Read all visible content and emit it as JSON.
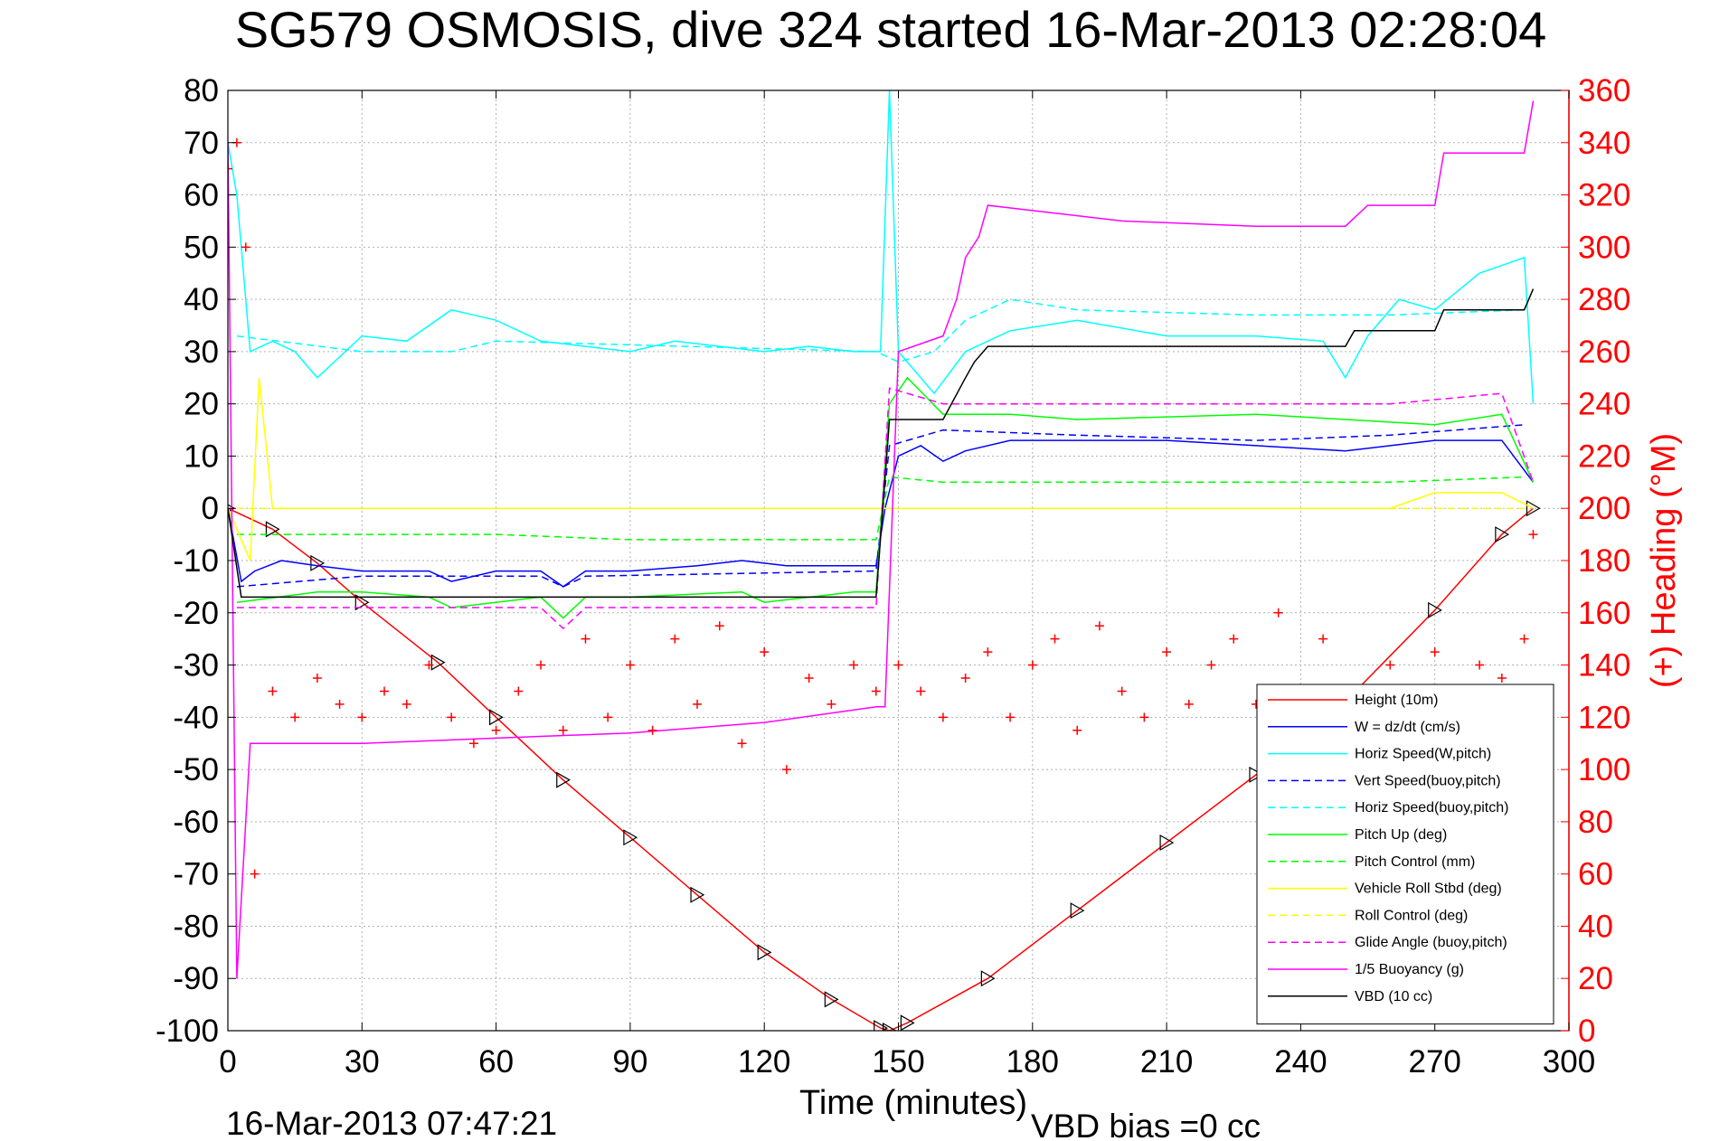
{
  "chart_data": {
    "type": "line",
    "title": "SG579 OSMOSIS, dive 324 started 16-Mar-2013 02:28:04",
    "xlabel": "Time (minutes)",
    "ylabel": "",
    "y2label": "(+) Heading (°M)",
    "footer_left": "16-Mar-2013 07:47:21",
    "footer_right": "VBD bias =0 cc",
    "xlim": [
      0,
      300
    ],
    "ylim": [
      -100,
      80
    ],
    "y2lim": [
      0,
      360
    ],
    "grid": true,
    "legend_position": "lower-right",
    "x_ticks": [
      "0",
      "30",
      "60",
      "90",
      "120",
      "150",
      "180",
      "210",
      "240",
      "270",
      "300"
    ],
    "y_ticks": [
      "80",
      "70",
      "60",
      "50",
      "40",
      "30",
      "20",
      "10",
      "0",
      "-10",
      "-20",
      "-30",
      "-40",
      "-50",
      "-60",
      "-70",
      "-80",
      "-90",
      "-100"
    ],
    "y2_ticks": [
      "360",
      "340",
      "320",
      "300",
      "280",
      "260",
      "240",
      "220",
      "200",
      "180",
      "160",
      "140",
      "120",
      "100",
      "80",
      "60",
      "40",
      "20",
      "0"
    ],
    "colors": {
      "axis_right": "#ff0000",
      "height": "#ff0000",
      "w": "#0000ff",
      "horiz": "#00ffff",
      "pitch": "#00ff00",
      "roll": "#ffff00",
      "glide": "#ff00ff",
      "vbd": "#000000"
    },
    "series": [
      {
        "name": "Height (10m)",
        "color": "#ff0000",
        "style": "solid",
        "x": [
          0,
          10,
          20,
          30,
          47,
          60,
          75,
          90,
          105,
          120,
          135,
          146,
          148,
          152,
          170,
          190,
          210,
          230,
          250,
          270,
          285,
          292
        ],
        "y": [
          0,
          -4,
          -10.5,
          -18,
          -29.5,
          -40,
          -52,
          -63,
          -74,
          -85,
          -94,
          -99.5,
          -100,
          -98.5,
          -90,
          -77,
          -64,
          -51,
          -37,
          -19.5,
          -5,
          0
        ]
      },
      {
        "name": "W = dz/dt (cm/s)",
        "color": "#0000ff",
        "style": "solid",
        "x": [
          0,
          3,
          6,
          12,
          20,
          30,
          45,
          50,
          60,
          70,
          75,
          80,
          90,
          105,
          115,
          125,
          135,
          145,
          147,
          150,
          155,
          160,
          165,
          175,
          190,
          210,
          230,
          250,
          260,
          270,
          285,
          292
        ],
        "y": [
          0,
          -14,
          -12,
          -10,
          -11,
          -12,
          -12,
          -14,
          -12,
          -12,
          -15,
          -12,
          -12,
          -11,
          -10,
          -11,
          -11,
          -11,
          0,
          10,
          12,
          9,
          11,
          13,
          13,
          13,
          12,
          11,
          12,
          13,
          13,
          5
        ]
      },
      {
        "name": "Horiz Speed(W,pitch)",
        "color": "#00ffff",
        "style": "solid",
        "x": [
          0,
          2,
          5,
          10,
          15,
          20,
          30,
          40,
          50,
          60,
          70,
          80,
          90,
          100,
          110,
          120,
          130,
          140,
          146,
          148,
          150,
          155,
          158,
          165,
          175,
          190,
          210,
          230,
          245,
          250,
          255,
          262,
          270,
          280,
          290,
          292
        ],
        "y": [
          70,
          60,
          30,
          32,
          30,
          25,
          33,
          32,
          38,
          36,
          32,
          31,
          30,
          32,
          31,
          30,
          31,
          30,
          30,
          80,
          30,
          25,
          22,
          30,
          34,
          36,
          33,
          33,
          32,
          25,
          33,
          40,
          38,
          45,
          48,
          20
        ]
      },
      {
        "name": "Vert Speed(buoy,pitch)",
        "color": "#0000ff",
        "style": "dashed",
        "x": [
          2,
          30,
          70,
          75,
          80,
          145,
          148,
          160,
          190,
          230,
          260,
          290
        ],
        "y": [
          -15,
          -13,
          -13,
          -15,
          -13,
          -12,
          12,
          15,
          14,
          13,
          14,
          16
        ]
      },
      {
        "name": "Horiz Speed(buoy,pitch)",
        "color": "#00ffff",
        "style": "dashed",
        "x": [
          2,
          30,
          50,
          60,
          145,
          150,
          158,
          165,
          175,
          190,
          230,
          260,
          290
        ],
        "y": [
          33,
          30,
          30,
          32,
          30,
          28,
          30,
          36,
          40,
          38,
          37,
          37,
          38
        ]
      },
      {
        "name": "Pitch Up (deg)",
        "color": "#00ff00",
        "style": "solid",
        "x": [
          2,
          20,
          30,
          45,
          50,
          70,
          75,
          80,
          90,
          115,
          120,
          140,
          145,
          148,
          152,
          160,
          175,
          190,
          230,
          250,
          270,
          285,
          292
        ],
        "y": [
          -18,
          -16,
          -16,
          -17,
          -19,
          -17,
          -21,
          -17,
          -17,
          -16,
          -18,
          -16,
          -16,
          20,
          25,
          18,
          18,
          17,
          18,
          17,
          16,
          18,
          5
        ]
      },
      {
        "name": "Pitch Control (mm)",
        "color": "#00ff00",
        "style": "dashed",
        "x": [
          2,
          30,
          60,
          90,
          145,
          148,
          160,
          190,
          230,
          260,
          290
        ],
        "y": [
          -5,
          -5,
          -5,
          -6,
          -6,
          6,
          5,
          5,
          5,
          5,
          6
        ]
      },
      {
        "name": "Vehicle Roll Stbd (deg)",
        "color": "#ffff00",
        "style": "solid",
        "x": [
          0,
          5,
          7,
          10,
          15,
          30,
          60,
          90,
          120,
          145,
          150,
          170,
          200,
          230,
          260,
          270,
          285,
          292
        ],
        "y": [
          0,
          -10,
          25,
          0,
          0,
          0,
          0,
          0,
          0,
          0,
          0,
          0,
          0,
          0,
          0,
          3,
          3,
          0
        ]
      },
      {
        "name": "Roll Control (deg)",
        "color": "#ffff00",
        "style": "dashed",
        "x": [
          2,
          60,
          145,
          150,
          290
        ],
        "y": [
          0,
          0,
          0,
          0,
          0
        ]
      },
      {
        "name": "Glide Angle (buoy,pitch)",
        "color": "#ff00ff",
        "style": "dashed",
        "x": [
          2,
          30,
          70,
          75,
          80,
          145,
          148,
          160,
          190,
          230,
          260,
          285,
          292
        ],
        "y": [
          -19,
          -19,
          -19,
          -23,
          -19,
          -19,
          23,
          20,
          20,
          20,
          20,
          22,
          5
        ]
      },
      {
        "name": "1/5 Buoyancy (g)",
        "color": "#ff00ff",
        "style": "solid",
        "x": [
          0,
          2,
          5,
          30,
          60,
          90,
          120,
          145,
          147,
          150,
          160,
          163,
          165,
          168,
          170,
          180,
          200,
          230,
          250,
          255,
          262,
          270,
          272,
          290,
          292
        ],
        "y": [
          70,
          -90,
          -45,
          -45,
          -44,
          -43,
          -41,
          -38,
          -38,
          30,
          33,
          40,
          48,
          52,
          58,
          57,
          55,
          54,
          54,
          58,
          58,
          58,
          68,
          68,
          78
        ]
      },
      {
        "name": "VBD (10 cc)",
        "color": "#000000",
        "style": "solid",
        "x": [
          0,
          3,
          10,
          145,
          148,
          151,
          160,
          165,
          167,
          170,
          205,
          232,
          250,
          252,
          270,
          272,
          290,
          292
        ],
        "y": [
          0,
          -17,
          -17,
          -17,
          17,
          17,
          17,
          25,
          28,
          31,
          31,
          31,
          31,
          34,
          34,
          38,
          38,
          42
        ]
      },
      {
        "name": "Heading (°M)",
        "color": "#ff0000",
        "style": "markers",
        "axis": "right",
        "x": [
          0,
          2,
          4,
          6,
          10,
          15,
          20,
          25,
          30,
          35,
          40,
          45,
          50,
          55,
          60,
          65,
          70,
          75,
          80,
          85,
          90,
          95,
          100,
          105,
          110,
          115,
          120,
          125,
          130,
          135,
          140,
          145,
          150,
          155,
          160,
          165,
          170,
          175,
          180,
          185,
          190,
          195,
          200,
          205,
          210,
          215,
          220,
          225,
          230,
          235,
          240,
          245,
          250,
          255,
          260,
          265,
          270,
          275,
          280,
          285,
          290,
          292
        ],
        "y": [
          330,
          340,
          300,
          60,
          130,
          120,
          135,
          125,
          120,
          130,
          125,
          140,
          120,
          110,
          115,
          130,
          140,
          115,
          150,
          120,
          140,
          115,
          150,
          125,
          155,
          110,
          145,
          100,
          135,
          125,
          140,
          130,
          140,
          130,
          120,
          135,
          145,
          120,
          140,
          150,
          115,
          155,
          130,
          120,
          145,
          125,
          140,
          150,
          125,
          160,
          120,
          150,
          130,
          125,
          140,
          125,
          145,
          130,
          140,
          135,
          150,
          190
        ]
      }
    ]
  }
}
